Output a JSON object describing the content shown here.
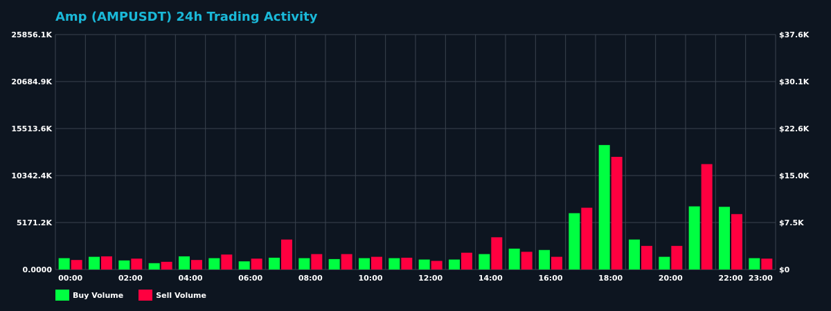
{
  "colors": {
    "background": "#0d1520",
    "title": "#1ab8d8",
    "grid": "#3a434f",
    "buy": "#00ff41",
    "sell": "#ff0040",
    "tick_text": "#ffffff"
  },
  "chart_data": {
    "type": "bar",
    "title": "Amp (AMPUSDT) 24h Trading Activity",
    "xlabel": "",
    "ylabel": "",
    "grid": true,
    "legend_position": "bottom-left",
    "y_left_ticks": [
      "0.0000",
      "5171.2K",
      "10342.4K",
      "15513.6K",
      "20684.9K",
      "25856.1K"
    ],
    "y_right_ticks": [
      "$0",
      "$7.5K",
      "$15.0K",
      "$22.6K",
      "$30.1K",
      "$37.6K"
    ],
    "ylim": [
      0,
      25856.1
    ],
    "x_ticks": [
      {
        "hour": 0,
        "label": "00:00"
      },
      {
        "hour": 2,
        "label": "02:00"
      },
      {
        "hour": 4,
        "label": "04:00"
      },
      {
        "hour": 6,
        "label": "06:00"
      },
      {
        "hour": 8,
        "label": "08:00"
      },
      {
        "hour": 10,
        "label": "10:00"
      },
      {
        "hour": 12,
        "label": "12:00"
      },
      {
        "hour": 14,
        "label": "14:00"
      },
      {
        "hour": 16,
        "label": "16:00"
      },
      {
        "hour": 18,
        "label": "18:00"
      },
      {
        "hour": 20,
        "label": "20:00"
      },
      {
        "hour": 22,
        "label": "22:00"
      },
      {
        "hour": 23,
        "label": "23:00"
      }
    ],
    "series": [
      {
        "name": "Buy Volume",
        "color": "#00ff41",
        "points": [
          {
            "hour": 0,
            "value": 1250
          },
          {
            "hour": 1,
            "value": 1400
          },
          {
            "hour": 2,
            "value": 1000
          },
          {
            "hour": 3,
            "value": 700
          },
          {
            "hour": 4,
            "value": 1450
          },
          {
            "hour": 5,
            "value": 1250
          },
          {
            "hour": 6,
            "value": 900
          },
          {
            "hour": 7,
            "value": 1300
          },
          {
            "hour": 8,
            "value": 1250
          },
          {
            "hour": 9,
            "value": 1150
          },
          {
            "hour": 10,
            "value": 1250
          },
          {
            "hour": 11,
            "value": 1250
          },
          {
            "hour": 12,
            "value": 1100
          },
          {
            "hour": 13,
            "value": 1100
          },
          {
            "hour": 14,
            "value": 1700
          },
          {
            "hour": 15,
            "value": 2300
          },
          {
            "hour": 16,
            "value": 2150
          },
          {
            "hour": 17,
            "value": 6200
          },
          {
            "hour": 18,
            "value": 13700
          },
          {
            "hour": 19,
            "value": 3300
          },
          {
            "hour": 20,
            "value": 1400
          },
          {
            "hour": 21,
            "value": 6950
          },
          {
            "hour": 22,
            "value": 6900
          },
          {
            "hour": 23,
            "value": 1250
          }
        ]
      },
      {
        "name": "Sell Volume",
        "color": "#ff0040",
        "points": [
          {
            "hour": 0,
            "value": 1050
          },
          {
            "hour": 1,
            "value": 1450
          },
          {
            "hour": 2,
            "value": 1200
          },
          {
            "hour": 3,
            "value": 850
          },
          {
            "hour": 4,
            "value": 1050
          },
          {
            "hour": 5,
            "value": 1650
          },
          {
            "hour": 6,
            "value": 1200
          },
          {
            "hour": 7,
            "value": 3300
          },
          {
            "hour": 8,
            "value": 1700
          },
          {
            "hour": 9,
            "value": 1700
          },
          {
            "hour": 10,
            "value": 1400
          },
          {
            "hour": 11,
            "value": 1300
          },
          {
            "hour": 12,
            "value": 950
          },
          {
            "hour": 13,
            "value": 1850
          },
          {
            "hour": 14,
            "value": 3550
          },
          {
            "hour": 15,
            "value": 1950
          },
          {
            "hour": 16,
            "value": 1400
          },
          {
            "hour": 17,
            "value": 6800
          },
          {
            "hour": 18,
            "value": 12400
          },
          {
            "hour": 19,
            "value": 2600
          },
          {
            "hour": 20,
            "value": 2600
          },
          {
            "hour": 21,
            "value": 11600
          },
          {
            "hour": 22,
            "value": 6100
          },
          {
            "hour": 23,
            "value": 1200
          }
        ]
      }
    ]
  }
}
